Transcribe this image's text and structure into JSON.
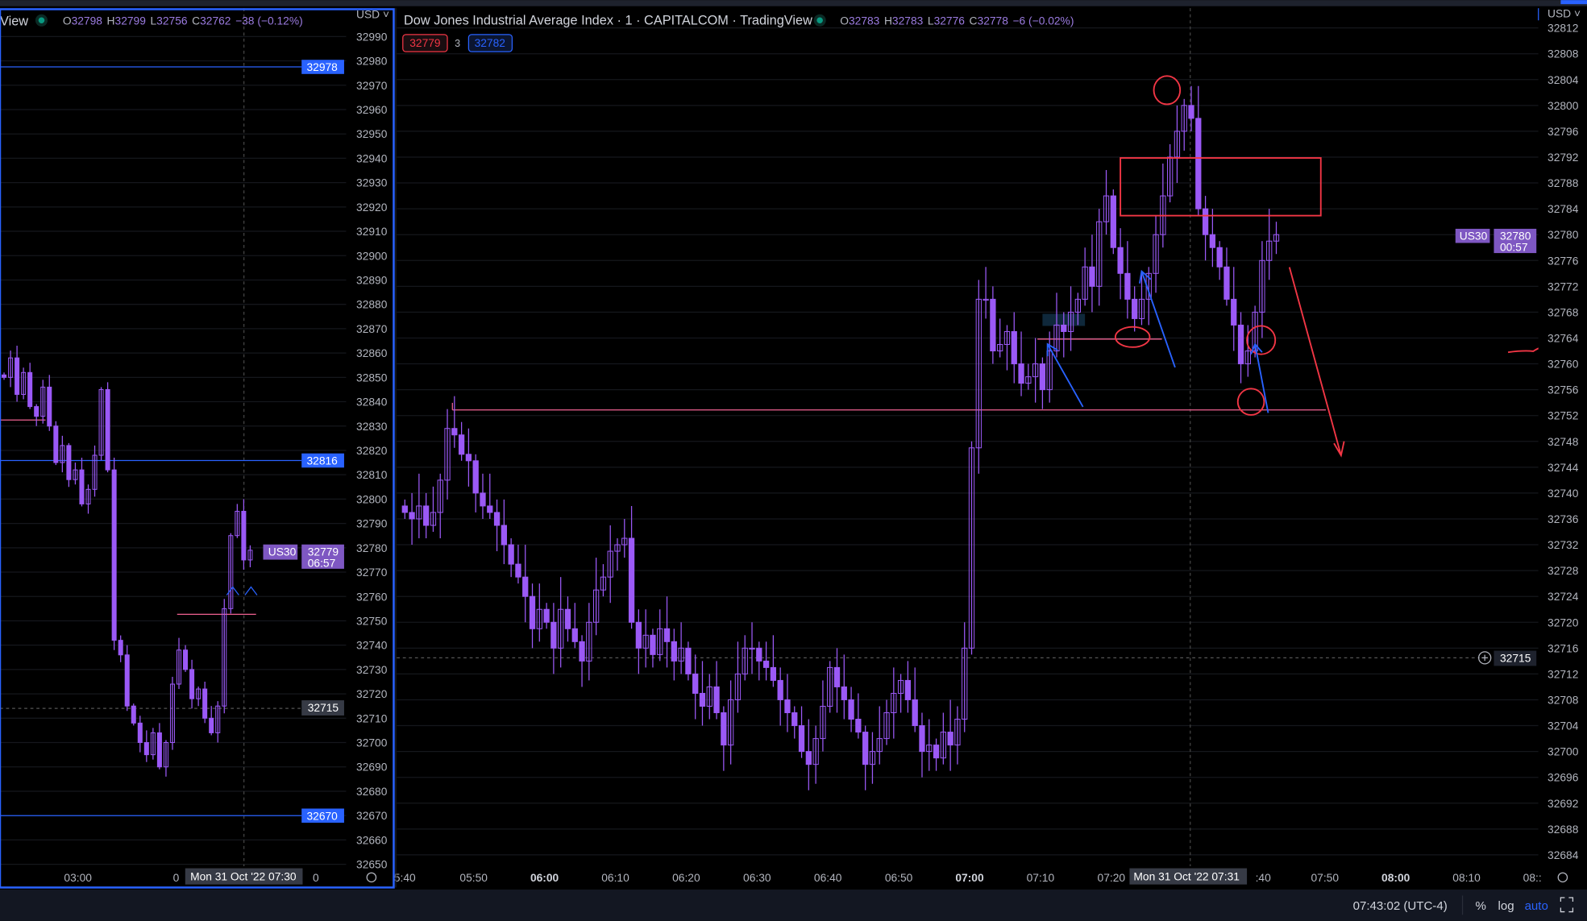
{
  "left_pane": {
    "title_partial": "View",
    "ohlc": {
      "o_label": "O",
      "o": "32798",
      "h_label": "H",
      "h": "32799",
      "l_label": "L",
      "l": "32756",
      "c_label": "C",
      "c": "32762",
      "change": "−38 (−0.12%)"
    },
    "currency": "USD",
    "price_ticks": [
      32990,
      32980,
      32970,
      32960,
      32950,
      32940,
      32930,
      32920,
      32910,
      32900,
      32890,
      32880,
      32870,
      32860,
      32850,
      32840,
      32830,
      32820,
      32810,
      32800,
      32790,
      32780,
      32770,
      32760,
      32750,
      32740,
      32730,
      32720,
      32710,
      32700,
      32690,
      32680,
      32670,
      32660,
      32650
    ],
    "level_labels": [
      "32978",
      "32816",
      "32670"
    ],
    "symbol_badge": "US30",
    "last_price": "32779",
    "countdown": "06:57",
    "crosshair_price": "32715",
    "time_labels": [
      "03:00",
      "0"
    ],
    "time_tail": "0",
    "crosshair_time": "Mon 31 Oct '22  07:30",
    "closes": [
      32850,
      32858,
      32843,
      32852,
      32838,
      32834,
      32846,
      32830,
      32815,
      32822,
      32808,
      32812,
      32798,
      32804,
      32818,
      32845,
      32812,
      32742,
      32736,
      32715,
      32708,
      32700,
      32695,
      32704,
      32690,
      32700,
      32724,
      32738,
      32730,
      32718,
      32722,
      32710,
      32704,
      32715,
      32755,
      32785,
      32795,
      32775,
      32779
    ]
  },
  "main_pane": {
    "title": "Dow Jones Industrial Average Index · 1 · CAPITALCOM · TradingView",
    "ohlc": {
      "o_label": "O",
      "o": "32783",
      "h_label": "H",
      "h": "32783",
      "l_label": "L",
      "l": "32776",
      "c_label": "C",
      "c": "32778",
      "change": "−6 (−0.02%)"
    },
    "bid": "32779",
    "spread": "3",
    "ask": "32782",
    "currency": "USD",
    "price_ticks": [
      32812,
      32808,
      32804,
      32800,
      32796,
      32792,
      32788,
      32784,
      32780,
      32776,
      32772,
      32768,
      32764,
      32760,
      32756,
      32752,
      32748,
      32744,
      32740,
      32736,
      32732,
      32728,
      32724,
      32720,
      32716,
      32712,
      32708,
      32704,
      32700,
      32696,
      32692,
      32688,
      32684
    ],
    "symbol_badge": "US30",
    "last_price": "32780",
    "countdown": "00:57",
    "crosshair_price": "32715",
    "time_labels": [
      "5:40",
      "05:50",
      "06:00",
      "06:10",
      "06:20",
      "06:30",
      "06:40",
      "06:50",
      "07:00",
      "07:10",
      "07:20",
      ":40",
      "07:50",
      "08:00",
      "08:10",
      "08::"
    ],
    "bold_times": [
      "06:00",
      "07:00",
      "08:00"
    ],
    "crosshair_time": "Mon 31 Oct '22  07:31",
    "closes": [
      32737,
      32736,
      32738,
      32735,
      32737,
      32742,
      32750,
      32749,
      32746,
      32745,
      32740,
      32738,
      32737,
      32735,
      32732,
      32729,
      32727,
      32724,
      32719,
      32722,
      32720,
      32716,
      32722,
      32719,
      32717,
      32714,
      32720,
      32725,
      32727,
      32731,
      32732,
      32733,
      32720,
      32716,
      32718,
      32715,
      32719,
      32717,
      32714,
      32716,
      32712,
      32709,
      32707,
      32710,
      32706,
      32701,
      32708,
      32712,
      32716,
      32716,
      32714,
      32713,
      32711,
      32708,
      32706,
      32704,
      32700,
      32698,
      32702,
      32707,
      32713,
      32710,
      32708,
      32705,
      32703,
      32698,
      32700,
      32702,
      32706,
      32709,
      32711,
      32708,
      32704,
      32700,
      32701,
      32699,
      32703,
      32701,
      32705,
      32716,
      32747,
      32770,
      32770,
      32762,
      32763,
      32765,
      32760,
      32757,
      32758,
      32760,
      32756,
      32762,
      32766,
      32765,
      32768,
      32770,
      32775,
      32772,
      32782,
      32786,
      32778,
      32774,
      32770,
      32767,
      32770,
      32774,
      32780,
      32786,
      32792,
      32796,
      32800,
      32798,
      32784,
      32780,
      32778,
      32775,
      32770,
      32766,
      32760,
      32762,
      32768,
      32776,
      32779,
      32780
    ]
  },
  "status_bar": {
    "clock": "07:43:02 (UTC-4)",
    "percent": "%",
    "log": "log",
    "auto": "auto"
  },
  "colors": {
    "candle": "#9b59f6",
    "accent": "#2962ff",
    "annotation_red": "#f23645",
    "annotation_blue": "#2962ff",
    "level_pink": "#f06292",
    "badge": "#7e57c2"
  }
}
